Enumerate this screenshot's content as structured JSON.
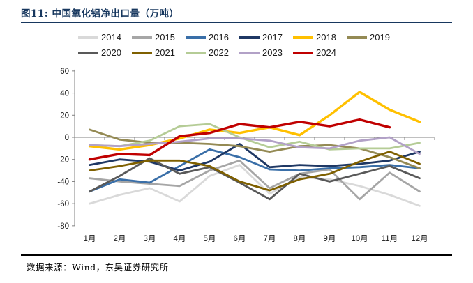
{
  "figure": {
    "title": "图11: 中国氧化铝净出口量（万吨）",
    "source_note": "数据来源：Wind，东吴证券研究所"
  },
  "chart_data": {
    "type": "line",
    "title": "中国氧化铝净出口量（万吨）",
    "unit": "万吨",
    "x_categories": [
      "1月",
      "2月",
      "3月",
      "4月",
      "5月",
      "6月",
      "7月",
      "8月",
      "9月",
      "10月",
      "11月",
      "12月"
    ],
    "y_ticks": [
      60,
      40,
      20,
      0,
      -20,
      -40,
      -60,
      -80
    ],
    "ylim": [
      -80,
      60
    ],
    "grid": false,
    "legend_position": "top",
    "axis_color": "#808080",
    "series": [
      {
        "name": "2014",
        "color": "#D9D9D9",
        "values": [
          -60,
          -52,
          -46,
          -58,
          -35,
          -25,
          -51,
          -36,
          -38,
          -44,
          -52,
          -62
        ]
      },
      {
        "name": "2015",
        "color": "#A6A6A6",
        "values": [
          -37,
          -40,
          -42,
          -44,
          -30,
          -21,
          -46,
          -33,
          -29,
          -56,
          -32,
          -49
        ]
      },
      {
        "name": "2016",
        "color": "#3A6FA8",
        "values": [
          -49,
          -38,
          -41,
          -26,
          -11,
          -18,
          -29,
          -30,
          -28,
          -27,
          -25,
          -28
        ]
      },
      {
        "name": "2017",
        "color": "#1F3864",
        "values": [
          -25,
          -20,
          -22,
          -30,
          -22,
          -6,
          -27,
          -25,
          -26,
          -24,
          -21,
          -13
        ]
      },
      {
        "name": "2018",
        "color": "#FFC000",
        "values": [
          -8,
          -11,
          -7,
          -1,
          7,
          4,
          9,
          2,
          20,
          41,
          25,
          14
        ]
      },
      {
        "name": "2019",
        "color": "#948A54",
        "values": [
          7,
          -2,
          -5,
          -5,
          -6,
          -8,
          -13,
          -8,
          -7,
          -10,
          -18,
          -28
        ]
      },
      {
        "name": "2020",
        "color": "#595959",
        "values": [
          -49,
          -35,
          -19,
          -33,
          -27,
          -41,
          -56,
          -33,
          -40,
          -33,
          -26,
          -37
        ]
      },
      {
        "name": "2021",
        "color": "#7F6000",
        "values": [
          -30,
          -26,
          -21,
          -21,
          -26,
          -40,
          -48,
          -38,
          -33,
          -22,
          -13,
          -24
        ]
      },
      {
        "name": "2022",
        "color": "#B5CC96",
        "values": [
          -7,
          -8,
          -3,
          10,
          12,
          0,
          -9,
          -4,
          -11,
          -10,
          -10,
          -5
        ]
      },
      {
        "name": "2023",
        "color": "#B2A1C7",
        "values": [
          -7,
          -8,
          -6,
          -4,
          -1,
          -1,
          -3,
          -9,
          -10,
          -3,
          0,
          -15
        ]
      },
      {
        "name": "2024",
        "color": "#C00000",
        "values": [
          -20,
          -15,
          -16,
          1,
          4,
          12,
          9,
          14,
          10,
          16,
          9
        ]
      }
    ]
  }
}
